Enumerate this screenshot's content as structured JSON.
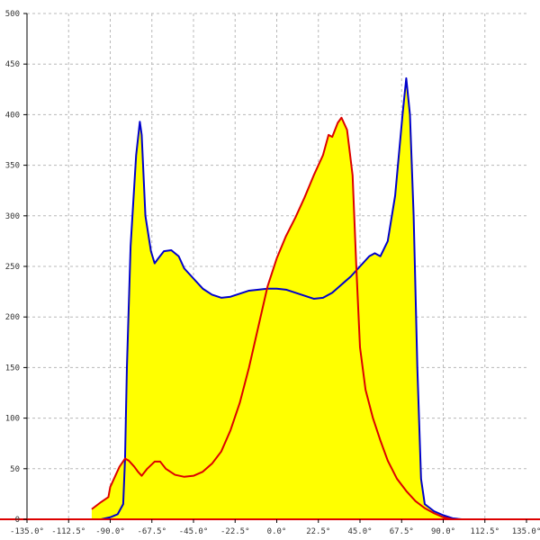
{
  "chart_data": {
    "type": "area",
    "title": "",
    "xlabel": "",
    "ylabel": "",
    "xlim": [
      -135,
      135
    ],
    "ylim": [
      0,
      500
    ],
    "grid": true,
    "x_ticks": [
      {
        "value": -135,
        "label": "-135.0°"
      },
      {
        "value": -112.5,
        "label": "-112.5°"
      },
      {
        "value": -90,
        "label": "-90.0°"
      },
      {
        "value": -67.5,
        "label": "-67.5°"
      },
      {
        "value": -45,
        "label": "-45.0°"
      },
      {
        "value": -22.5,
        "label": "-22.5°"
      },
      {
        "value": 0,
        "label": "0.0°"
      },
      {
        "value": 22.5,
        "label": "22.5°"
      },
      {
        "value": 45,
        "label": "45.0°"
      },
      {
        "value": 67.5,
        "label": "67.5°"
      },
      {
        "value": 90,
        "label": "90.0°"
      },
      {
        "value": 112.5,
        "label": "112.5°"
      },
      {
        "value": 135,
        "label": "135.0°"
      }
    ],
    "y_ticks": [
      {
        "value": 0,
        "label": "0"
      },
      {
        "value": 50,
        "label": "50"
      },
      {
        "value": 100,
        "label": "100"
      },
      {
        "value": 150,
        "label": "150"
      },
      {
        "value": 200,
        "label": "200"
      },
      {
        "value": 250,
        "label": "250"
      },
      {
        "value": 300,
        "label": "300"
      },
      {
        "value": 350,
        "label": "350"
      },
      {
        "value": 400,
        "label": "400"
      },
      {
        "value": 450,
        "label": "450"
      },
      {
        "value": 500,
        "label": "500"
      }
    ],
    "fill_color": "#ffff00",
    "series": [
      {
        "color": "#0000cc",
        "points": [
          [
            -100,
            0
          ],
          [
            -95,
            0
          ],
          [
            -90,
            2
          ],
          [
            -86,
            5
          ],
          [
            -83,
            15
          ],
          [
            -82,
            60
          ],
          [
            -81,
            150
          ],
          [
            -79,
            270
          ],
          [
            -76,
            360
          ],
          [
            -74,
            393
          ],
          [
            -73,
            380
          ],
          [
            -71,
            300
          ],
          [
            -68,
            265
          ],
          [
            -66,
            253
          ],
          [
            -64,
            258
          ],
          [
            -61,
            265
          ],
          [
            -57,
            266
          ],
          [
            -53,
            260
          ],
          [
            -50,
            248
          ],
          [
            -45,
            238
          ],
          [
            -40,
            228
          ],
          [
            -35,
            222
          ],
          [
            -30,
            219
          ],
          [
            -25,
            220
          ],
          [
            -20,
            223
          ],
          [
            -15,
            226
          ],
          [
            -10,
            227
          ],
          [
            -5,
            228
          ],
          [
            0,
            228
          ],
          [
            5,
            227
          ],
          [
            10,
            224
          ],
          [
            15,
            221
          ],
          [
            20,
            218
          ],
          [
            25,
            219
          ],
          [
            30,
            224
          ],
          [
            35,
            232
          ],
          [
            40,
            240
          ],
          [
            45,
            250
          ],
          [
            50,
            260
          ],
          [
            53,
            263
          ],
          [
            56,
            260
          ],
          [
            60,
            275
          ],
          [
            64,
            320
          ],
          [
            68,
            400
          ],
          [
            70,
            436
          ],
          [
            72,
            400
          ],
          [
            74,
            300
          ],
          [
            76,
            150
          ],
          [
            78,
            40
          ],
          [
            80,
            15
          ],
          [
            85,
            8
          ],
          [
            90,
            4
          ],
          [
            95,
            1
          ],
          [
            100,
            0
          ]
        ]
      },
      {
        "color": "#dd0000",
        "points": [
          [
            -100,
            10
          ],
          [
            -95,
            17
          ],
          [
            -91,
            22
          ],
          [
            -90,
            32
          ],
          [
            -88,
            40
          ],
          [
            -85,
            52
          ],
          [
            -82,
            60
          ],
          [
            -80,
            58
          ],
          [
            -77,
            52
          ],
          [
            -75,
            47
          ],
          [
            -73,
            43
          ],
          [
            -70,
            50
          ],
          [
            -66,
            57
          ],
          [
            -63,
            57
          ],
          [
            -60,
            50
          ],
          [
            -55,
            44
          ],
          [
            -50,
            42
          ],
          [
            -45,
            43
          ],
          [
            -40,
            47
          ],
          [
            -35,
            55
          ],
          [
            -30,
            67
          ],
          [
            -25,
            88
          ],
          [
            -20,
            115
          ],
          [
            -15,
            150
          ],
          [
            -10,
            190
          ],
          [
            -5,
            230
          ],
          [
            0,
            258
          ],
          [
            5,
            280
          ],
          [
            10,
            298
          ],
          [
            15,
            318
          ],
          [
            20,
            340
          ],
          [
            25,
            360
          ],
          [
            28,
            380
          ],
          [
            30,
            378
          ],
          [
            33,
            392
          ],
          [
            35,
            397
          ],
          [
            38,
            385
          ],
          [
            41,
            340
          ],
          [
            43,
            250
          ],
          [
            45,
            170
          ],
          [
            48,
            128
          ],
          [
            52,
            100
          ],
          [
            56,
            78
          ],
          [
            60,
            58
          ],
          [
            65,
            40
          ],
          [
            70,
            28
          ],
          [
            75,
            18
          ],
          [
            80,
            11
          ],
          [
            85,
            6
          ],
          [
            90,
            2
          ],
          [
            95,
            0
          ],
          [
            100,
            0
          ]
        ]
      }
    ]
  }
}
